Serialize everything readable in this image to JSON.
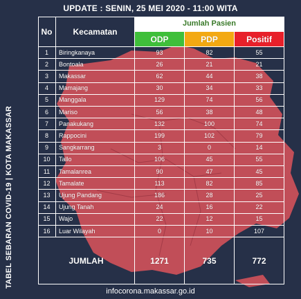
{
  "header": {
    "text": "UPDATE : SENIN, 25 MEI 2020 - 11:00 WITA"
  },
  "side_title": "TABEL SEBARAN COVID-19  |  KOTA MAKASSAR",
  "footer": {
    "text": "infocorona.makassar.go.id"
  },
  "colors": {
    "background": "#263048",
    "map": "#c14e58",
    "odp": "#3fbf3a",
    "pdp": "#f3a912",
    "positif": "#e8202a"
  },
  "table": {
    "col_no": "No",
    "col_kecamatan": "Kecamatan",
    "group_label": "Jumlah Pasien",
    "col_odp": "ODP",
    "col_pdp": "PDP",
    "col_positif": "Positif",
    "rows": [
      {
        "no": "1",
        "name": "Biringkanaya",
        "odp": "93",
        "pdp": "82",
        "pos": "55"
      },
      {
        "no": "2",
        "name": "Bontoala",
        "odp": "26",
        "pdp": "21",
        "pos": "21"
      },
      {
        "no": "3",
        "name": "Makassar",
        "odp": "62",
        "pdp": "44",
        "pos": "38"
      },
      {
        "no": "4",
        "name": "Mamajang",
        "odp": "30",
        "pdp": "34",
        "pos": "33"
      },
      {
        "no": "5",
        "name": "Manggala",
        "odp": "129",
        "pdp": "74",
        "pos": "56"
      },
      {
        "no": "6",
        "name": "Mariso",
        "odp": "56",
        "pdp": "38",
        "pos": "48"
      },
      {
        "no": "7",
        "name": "Panakukang",
        "odp": "132",
        "pdp": "100",
        "pos": "74"
      },
      {
        "no": "8",
        "name": "Rappocini",
        "odp": "199",
        "pdp": "102",
        "pos": "79"
      },
      {
        "no": "9",
        "name": "Sangkarrang",
        "odp": "3",
        "pdp": "0",
        "pos": "14"
      },
      {
        "no": "10",
        "name": "Tallo",
        "odp": "106",
        "pdp": "45",
        "pos": "55"
      },
      {
        "no": "11",
        "name": "Tamalanrea",
        "odp": "90",
        "pdp": "47",
        "pos": "45"
      },
      {
        "no": "12",
        "name": "Tamalate",
        "odp": "113",
        "pdp": "82",
        "pos": "85"
      },
      {
        "no": "13",
        "name": "Ujung Pandang",
        "odp": "186",
        "pdp": "28",
        "pos": "25"
      },
      {
        "no": "14",
        "name": "Ujung Tanah",
        "odp": "24",
        "pdp": "16",
        "pos": "22"
      },
      {
        "no": "15",
        "name": "Wajo",
        "odp": "22",
        "pdp": "12",
        "pos": "15"
      },
      {
        "no": "16",
        "name": "Luar Wilayah",
        "odp": "0",
        "pdp": "10",
        "pos": "107"
      }
    ],
    "total": {
      "label": "JUMLAH",
      "odp": "1271",
      "pdp": "735",
      "pos": "772"
    }
  }
}
